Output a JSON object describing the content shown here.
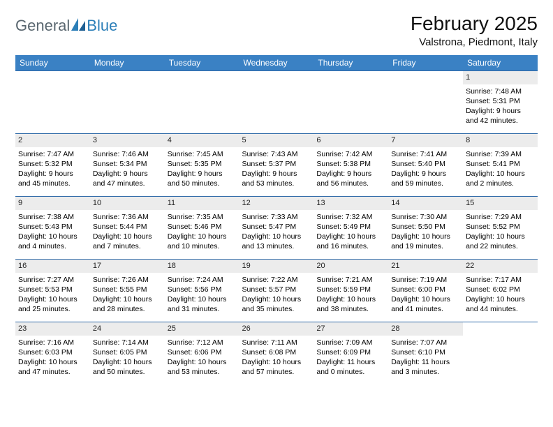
{
  "logo": {
    "text_general": "General",
    "text_blue": "Blue"
  },
  "title": "February 2025",
  "location": "Valstrona, Piedmont, Italy",
  "colors": {
    "header_bg": "#3a81c4",
    "header_text": "#ffffff",
    "daynum_bg": "#ececec",
    "row_border": "#2f6aa8",
    "logo_gray": "#5a6770",
    "logo_blue": "#2c7fb8"
  },
  "weekdays": [
    "Sunday",
    "Monday",
    "Tuesday",
    "Wednesday",
    "Thursday",
    "Friday",
    "Saturday"
  ],
  "weeks": [
    [
      null,
      null,
      null,
      null,
      null,
      null,
      {
        "d": "1",
        "sr": "7:48 AM",
        "ss": "5:31 PM",
        "dl": "9 hours and 42 minutes."
      }
    ],
    [
      {
        "d": "2",
        "sr": "7:47 AM",
        "ss": "5:32 PM",
        "dl": "9 hours and 45 minutes."
      },
      {
        "d": "3",
        "sr": "7:46 AM",
        "ss": "5:34 PM",
        "dl": "9 hours and 47 minutes."
      },
      {
        "d": "4",
        "sr": "7:45 AM",
        "ss": "5:35 PM",
        "dl": "9 hours and 50 minutes."
      },
      {
        "d": "5",
        "sr": "7:43 AM",
        "ss": "5:37 PM",
        "dl": "9 hours and 53 minutes."
      },
      {
        "d": "6",
        "sr": "7:42 AM",
        "ss": "5:38 PM",
        "dl": "9 hours and 56 minutes."
      },
      {
        "d": "7",
        "sr": "7:41 AM",
        "ss": "5:40 PM",
        "dl": "9 hours and 59 minutes."
      },
      {
        "d": "8",
        "sr": "7:39 AM",
        "ss": "5:41 PM",
        "dl": "10 hours and 2 minutes."
      }
    ],
    [
      {
        "d": "9",
        "sr": "7:38 AM",
        "ss": "5:43 PM",
        "dl": "10 hours and 4 minutes."
      },
      {
        "d": "10",
        "sr": "7:36 AM",
        "ss": "5:44 PM",
        "dl": "10 hours and 7 minutes."
      },
      {
        "d": "11",
        "sr": "7:35 AM",
        "ss": "5:46 PM",
        "dl": "10 hours and 10 minutes."
      },
      {
        "d": "12",
        "sr": "7:33 AM",
        "ss": "5:47 PM",
        "dl": "10 hours and 13 minutes."
      },
      {
        "d": "13",
        "sr": "7:32 AM",
        "ss": "5:49 PM",
        "dl": "10 hours and 16 minutes."
      },
      {
        "d": "14",
        "sr": "7:30 AM",
        "ss": "5:50 PM",
        "dl": "10 hours and 19 minutes."
      },
      {
        "d": "15",
        "sr": "7:29 AM",
        "ss": "5:52 PM",
        "dl": "10 hours and 22 minutes."
      }
    ],
    [
      {
        "d": "16",
        "sr": "7:27 AM",
        "ss": "5:53 PM",
        "dl": "10 hours and 25 minutes."
      },
      {
        "d": "17",
        "sr": "7:26 AM",
        "ss": "5:55 PM",
        "dl": "10 hours and 28 minutes."
      },
      {
        "d": "18",
        "sr": "7:24 AM",
        "ss": "5:56 PM",
        "dl": "10 hours and 31 minutes."
      },
      {
        "d": "19",
        "sr": "7:22 AM",
        "ss": "5:57 PM",
        "dl": "10 hours and 35 minutes."
      },
      {
        "d": "20",
        "sr": "7:21 AM",
        "ss": "5:59 PM",
        "dl": "10 hours and 38 minutes."
      },
      {
        "d": "21",
        "sr": "7:19 AM",
        "ss": "6:00 PM",
        "dl": "10 hours and 41 minutes."
      },
      {
        "d": "22",
        "sr": "7:17 AM",
        "ss": "6:02 PM",
        "dl": "10 hours and 44 minutes."
      }
    ],
    [
      {
        "d": "23",
        "sr": "7:16 AM",
        "ss": "6:03 PM",
        "dl": "10 hours and 47 minutes."
      },
      {
        "d": "24",
        "sr": "7:14 AM",
        "ss": "6:05 PM",
        "dl": "10 hours and 50 minutes."
      },
      {
        "d": "25",
        "sr": "7:12 AM",
        "ss": "6:06 PM",
        "dl": "10 hours and 53 minutes."
      },
      {
        "d": "26",
        "sr": "7:11 AM",
        "ss": "6:08 PM",
        "dl": "10 hours and 57 minutes."
      },
      {
        "d": "27",
        "sr": "7:09 AM",
        "ss": "6:09 PM",
        "dl": "11 hours and 0 minutes."
      },
      {
        "d": "28",
        "sr": "7:07 AM",
        "ss": "6:10 PM",
        "dl": "11 hours and 3 minutes."
      },
      null
    ]
  ],
  "labels": {
    "sunrise": "Sunrise:",
    "sunset": "Sunset:",
    "daylight": "Daylight:"
  }
}
